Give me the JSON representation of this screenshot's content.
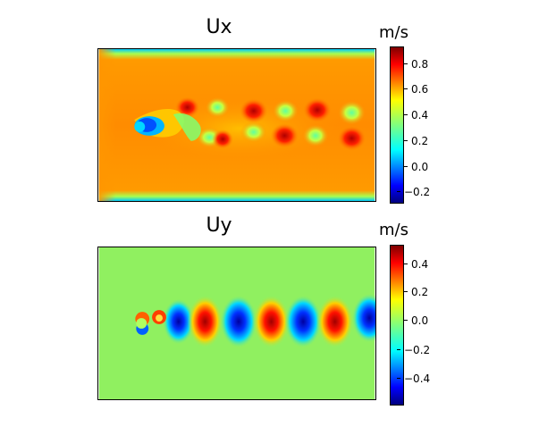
{
  "panels": [
    {
      "title": "Ux",
      "unit": "m/s",
      "colorbar_ticks": [
        "0.8",
        "0.6",
        "0.4",
        "0.2",
        "0.0",
        "−0.2"
      ]
    },
    {
      "title": "Uy",
      "unit": "m/s",
      "colorbar_ticks": [
        "0.4",
        "0.2",
        "0.0",
        "−0.2",
        "−0.4"
      ]
    }
  ],
  "colormap": "jet"
}
